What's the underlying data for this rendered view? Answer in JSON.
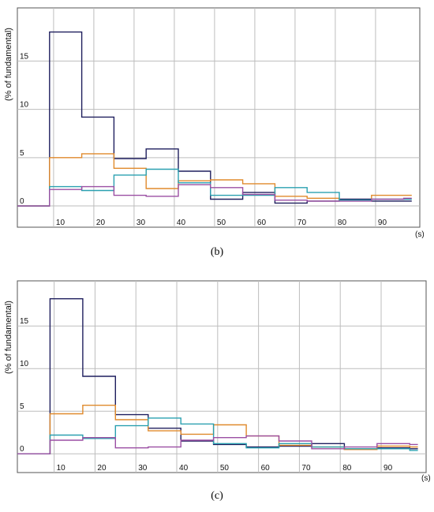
{
  "chart_data": [
    {
      "type": "line",
      "step": true,
      "panel_label": "b",
      "ylabel": "(% of fundamental)",
      "xunit": "(s)",
      "xlim": [
        0,
        100
      ],
      "ylim": [
        -2.2,
        20.5
      ],
      "yticks": [
        0,
        5,
        10,
        15
      ],
      "xticks": [
        10,
        20,
        30,
        40,
        50,
        60,
        70,
        80,
        90
      ],
      "grid": true,
      "series": [
        {
          "color": "#1f1f5e",
          "x": [
            0,
            8,
            16,
            24,
            32,
            40,
            48,
            56,
            64,
            72,
            80,
            88,
            96
          ],
          "y": [
            0,
            18,
            9.2,
            4.9,
            5.9,
            3.6,
            0.7,
            1.4,
            0.3,
            0.5,
            0.7,
            0.5,
            0.5
          ]
        },
        {
          "color": "#e08a2c",
          "x": [
            0,
            8,
            16,
            24,
            32,
            40,
            48,
            56,
            64,
            72,
            80,
            88,
            96
          ],
          "y": [
            0,
            5,
            5.4,
            3.9,
            1.8,
            2.6,
            2.7,
            2.3,
            1.0,
            0.8,
            0.6,
            1.1,
            1.1
          ]
        },
        {
          "color": "#2aa0b0",
          "x": [
            0,
            8,
            16,
            24,
            32,
            40,
            48,
            56,
            64,
            72,
            80,
            88,
            96
          ],
          "y": [
            0,
            2.0,
            1.6,
            3.2,
            3.8,
            2.4,
            1.1,
            1.1,
            1.9,
            1.4,
            0.6,
            0.7,
            0.7
          ]
        },
        {
          "color": "#9b4fa3",
          "x": [
            0,
            8,
            16,
            24,
            32,
            40,
            48,
            56,
            64,
            72,
            80,
            88,
            96
          ],
          "y": [
            0,
            1.7,
            2.0,
            1.1,
            1.0,
            2.2,
            1.9,
            1.2,
            0.6,
            0.5,
            0.5,
            0.7,
            0.8
          ]
        }
      ]
    },
    {
      "type": "line",
      "step": true,
      "panel_label": "c",
      "ylabel": "(% of fundamental)",
      "xunit": "(s)",
      "xlim": [
        0,
        100
      ],
      "ylim": [
        -2.2,
        20.3
      ],
      "yticks": [
        0,
        5,
        10,
        15
      ],
      "xticks": [
        10,
        20,
        30,
        40,
        50,
        60,
        70,
        80,
        90
      ],
      "grid": true,
      "series": [
        {
          "color": "#1f1f5e",
          "x": [
            0,
            8,
            16,
            24,
            32,
            40,
            48,
            56,
            64,
            72,
            80,
            88,
            96
          ],
          "y": [
            0,
            18.2,
            9.1,
            4.6,
            3.0,
            1.5,
            1.1,
            0.8,
            0.9,
            1.2,
            0.5,
            0.7,
            0.6
          ]
        },
        {
          "color": "#e08a2c",
          "x": [
            0,
            8,
            16,
            24,
            32,
            40,
            48,
            56,
            64,
            72,
            80,
            88,
            96
          ],
          "y": [
            0,
            4.7,
            5.7,
            4.0,
            2.7,
            2.3,
            3.4,
            2.1,
            1.0,
            0.8,
            0.5,
            0.9,
            0.8
          ]
        },
        {
          "color": "#2aa0b0",
          "x": [
            0,
            8,
            16,
            24,
            32,
            40,
            48,
            56,
            64,
            72,
            80,
            88,
            96
          ],
          "y": [
            0,
            2.2,
            1.8,
            3.3,
            4.2,
            3.5,
            1.2,
            0.7,
            1.2,
            0.8,
            0.6,
            0.6,
            0.4
          ]
        },
        {
          "color": "#9b4fa3",
          "x": [
            0,
            8,
            16,
            24,
            32,
            40,
            48,
            56,
            64,
            72,
            80,
            88,
            96
          ],
          "y": [
            0,
            1.6,
            1.9,
            0.7,
            0.8,
            1.6,
            1.9,
            2.1,
            1.5,
            0.6,
            0.8,
            1.2,
            1.1
          ]
        }
      ]
    }
  ],
  "captions": [
    "(b)",
    "(c)"
  ]
}
